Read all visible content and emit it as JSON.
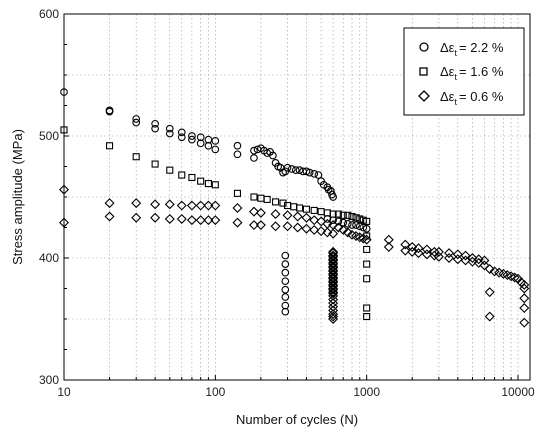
{
  "chart_data": {
    "type": "scatter",
    "xlabel": "Number of cycles (N)",
    "ylabel": "Stress amplitude (MPa)",
    "xscale": "log",
    "xlim": [
      10,
      12000
    ],
    "ylim": [
      300,
      600
    ],
    "x_tick_labels": [
      "10",
      "100",
      "1000",
      "10000"
    ],
    "y_tick_labels": [
      "300",
      "400",
      "500",
      "600"
    ],
    "grid": "dotted, on log decades and minor cycles",
    "legend_placement": "top-right",
    "legend": [
      {
        "symbol": "Δε",
        "subscript": "t",
        "value": "= 2.2 %"
      },
      {
        "symbol": "Δε",
        "subscript": "t",
        "value": "= 1.6 %"
      },
      {
        "symbol": "Δε",
        "subscript": "t",
        "value": "= 0.6 %"
      }
    ],
    "series": [
      {
        "marker": "circle",
        "x": [
          10,
          20,
          20,
          30,
          30,
          40,
          40,
          50,
          50,
          60,
          60,
          70,
          70,
          80,
          80,
          90,
          90,
          100,
          100,
          140,
          140,
          180,
          180,
          190,
          200,
          210,
          220,
          230,
          240,
          250,
          260,
          270,
          280,
          290,
          300,
          320,
          340,
          360,
          380,
          400,
          420,
          450,
          480,
          500,
          520,
          550,
          560,
          580,
          590,
          600,
          290,
          290,
          290,
          290,
          290,
          290,
          290,
          290,
          550,
          600,
          650,
          700,
          750,
          800,
          850,
          900,
          950,
          1000
        ],
        "y": [
          536,
          521,
          520,
          514,
          511,
          510,
          506,
          506,
          502,
          503,
          499,
          500,
          497,
          499,
          494,
          497,
          492,
          496,
          489,
          492,
          485,
          488,
          482,
          489,
          490,
          488,
          486,
          487,
          484,
          478,
          475,
          474,
          470,
          471,
          474,
          473,
          472,
          472,
          471,
          471,
          470,
          469,
          468,
          463,
          460,
          458,
          456,
          455,
          452,
          450,
          402,
          395,
          388,
          381,
          374,
          368,
          361,
          356,
          432,
          431,
          430,
          429,
          428,
          427,
          427,
          426,
          425,
          424
        ]
      },
      {
        "marker": "square",
        "x": [
          10,
          20,
          30,
          40,
          50,
          60,
          70,
          80,
          90,
          100,
          140,
          180,
          200,
          220,
          250,
          280,
          300,
          330,
          360,
          400,
          450,
          500,
          550,
          600,
          650,
          700,
          750,
          800,
          850,
          900,
          950,
          1000,
          1000,
          1000,
          1000,
          1000,
          1000,
          1000
        ],
        "y": [
          505,
          492,
          483,
          477,
          472,
          468,
          466,
          463,
          461,
          460,
          453,
          450,
          449,
          448,
          446,
          445,
          443,
          442,
          441,
          440,
          439,
          438,
          437,
          436,
          436,
          435,
          435,
          434,
          433,
          432,
          431,
          430,
          418,
          407,
          395,
          383,
          359,
          352
        ]
      },
      {
        "marker": "diamond",
        "x": [
          10,
          10,
          20,
          20,
          30,
          30,
          40,
          40,
          50,
          50,
          60,
          60,
          70,
          70,
          80,
          80,
          90,
          90,
          100,
          100,
          140,
          140,
          180,
          180,
          200,
          200,
          250,
          250,
          300,
          300,
          350,
          350,
          400,
          400,
          450,
          450,
          500,
          500,
          550,
          550,
          600,
          600,
          650,
          700,
          750,
          800,
          850,
          900,
          950,
          1000,
          600,
          600,
          600,
          600,
          600,
          600,
          600,
          600,
          600,
          600,
          600,
          600,
          600,
          600,
          600,
          600,
          600,
          600,
          600,
          600,
          600,
          600,
          600,
          600,
          600,
          600,
          600,
          600,
          600,
          600,
          600,
          600,
          1400,
          1400,
          1800,
          1800,
          2000,
          2000,
          2200,
          2200,
          2500,
          2500,
          2800,
          2800,
          3000,
          3000,
          3500,
          3500,
          4000,
          4000,
          4500,
          4500,
          5000,
          5000,
          5500,
          5500,
          6000,
          6000,
          6500,
          7000,
          7500,
          8000,
          8500,
          9000,
          9500,
          10000,
          10500,
          11000,
          6500,
          6500,
          11000,
          11000,
          11000,
          11000
        ],
        "y": [
          456,
          429,
          445,
          434,
          445,
          433,
          444,
          433,
          444,
          432,
          443,
          432,
          443,
          431,
          443,
          431,
          443,
          431,
          443,
          431,
          441,
          429,
          438,
          427,
          437,
          427,
          436,
          426,
          435,
          426,
          434,
          425,
          433,
          424,
          431,
          423,
          430,
          422,
          428,
          421,
          427,
          420,
          425,
          423,
          421,
          419,
          418,
          417,
          416,
          415,
          405,
          402,
          399,
          396,
          393,
          390,
          387,
          384,
          381,
          378,
          375,
          372,
          369,
          366,
          363,
          360,
          357,
          354,
          352,
          350,
          404,
          401,
          398,
          395,
          392,
          389,
          386,
          383,
          380,
          377,
          374,
          371,
          415,
          409,
          411,
          406,
          409,
          405,
          408,
          404,
          407,
          403,
          405,
          402,
          405,
          401,
          404,
          400,
          403,
          399,
          402,
          398,
          400,
          397,
          399,
          396,
          398,
          394,
          391,
          389,
          388,
          387,
          386,
          385,
          384,
          383,
          380,
          378,
          372,
          352,
          375,
          367,
          359,
          347
        ]
      }
    ]
  }
}
